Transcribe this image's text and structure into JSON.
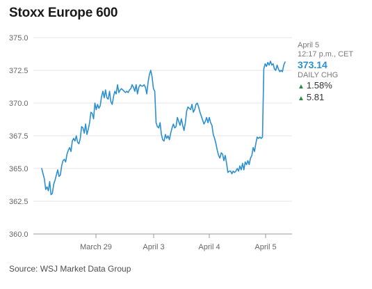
{
  "chart_data": {
    "type": "line",
    "title": "Stoxx Europe 600",
    "ylim": [
      360.0,
      375.0
    ],
    "y_ticks": [
      "375.0",
      "372.5",
      "370.0",
      "367.5",
      "365.0",
      "362.5",
      "360.0"
    ],
    "y_tick_values": [
      375.0,
      372.5,
      370.0,
      367.5,
      365.0,
      362.5,
      360.0
    ],
    "x_tick_labels": [
      "March 29",
      "April 3",
      "April 4",
      "April 5"
    ],
    "grid": "horizontal",
    "line_color": "#2b8fcf",
    "series": [
      {
        "values": [
          365.0,
          364.6,
          364.2,
          363.4,
          363.6,
          363.3,
          364.0,
          363.0,
          363.1,
          363.8,
          364.1,
          364.5,
          364.9,
          364.4,
          364.5,
          365.2,
          365.6,
          365.7,
          365.5,
          366.1,
          366.4,
          366.6,
          366.3,
          367.1,
          367.3,
          367.1,
          367.5,
          367.0,
          366.9,
          367.3,
          368.2,
          368.1,
          367.7,
          368.4,
          367.6,
          368.0,
          368.5,
          369.3,
          369.2,
          368.8,
          370.0,
          369.5,
          369.9,
          369.6,
          369.8,
          370.5,
          370.9,
          370.4,
          371.0,
          370.4,
          370.3,
          370.9,
          370.1,
          369.9,
          370.5,
          370.9,
          370.7,
          371.4,
          370.8,
          371.0,
          371.1,
          371.0,
          370.9,
          370.8,
          370.9,
          370.8,
          371.0,
          371.1,
          371.4,
          371.2,
          370.9,
          371.4,
          370.7,
          371.2,
          371.4,
          371.3,
          371.3,
          371.4,
          371.2,
          370.7,
          371.6,
          372.2,
          372.5,
          372.0,
          371.1,
          370.9,
          368.5,
          368.2,
          368.1,
          368.5,
          367.6,
          367.2,
          367.1,
          367.6,
          367.3,
          367.5,
          367.2,
          367.7,
          368.1,
          368.4,
          368.1,
          368.2,
          368.9,
          368.6,
          368.3,
          368.8,
          368.3,
          367.9,
          368.5,
          369.4,
          369.7,
          369.6,
          369.5,
          369.9,
          369.3,
          369.5,
          369.9,
          370.0,
          369.7,
          369.3,
          369.0,
          368.7,
          368.4,
          368.6,
          368.9,
          368.5,
          368.9,
          368.5,
          368.3,
          367.6,
          367.3,
          366.9,
          366.4,
          366.0,
          365.8,
          366.2,
          366.1,
          365.6,
          366.0,
          365.4,
          364.7,
          364.8,
          364.8,
          364.6,
          364.8,
          364.7,
          364.8,
          365.0,
          364.8,
          365.2,
          364.9,
          365.4,
          364.9,
          365.5,
          365.3,
          365.6,
          365.3,
          365.8,
          366.0,
          366.6,
          366.3,
          366.9,
          367.4,
          367.3,
          367.4,
          367.3,
          367.4,
          372.6,
          373.0,
          372.8,
          373.1,
          372.9,
          373.2,
          372.9,
          373.0,
          372.6,
          372.5,
          372.9,
          372.6,
          372.4,
          372.5,
          372.4,
          372.9,
          373.14
        ]
      }
    ],
    "info": {
      "date": "April 5",
      "time": "12:17 p.m., CET",
      "price": "373.14",
      "daily_chg_label": "DAILY CHG",
      "change_pct": "1.58%",
      "change_abs": "5.81"
    },
    "source": "Source: WSJ Market Data Group"
  },
  "colors": {
    "line": "#2b8fcf",
    "price": "#2b8fcf",
    "up": "#2a8a3a",
    "grid": "#e6e6e6",
    "axis": "#999999"
  },
  "icons": {
    "change_up": "up-triangle-icon"
  }
}
